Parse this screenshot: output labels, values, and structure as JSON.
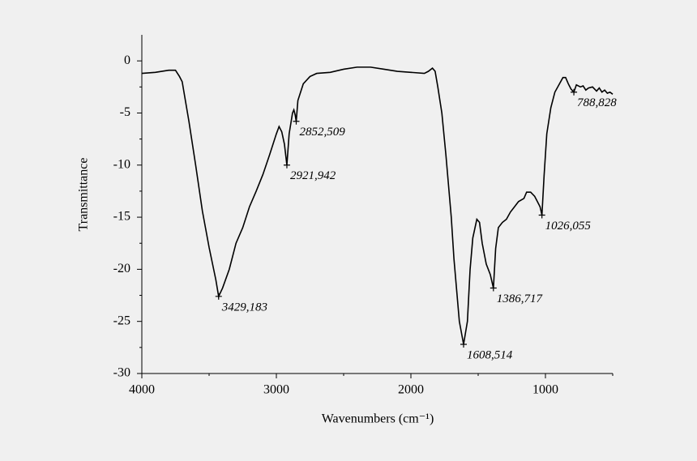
{
  "chart_data": {
    "type": "line",
    "x_label": "Wavenumbers (cm⁻¹)",
    "y_label": "Transmittance",
    "color": "#000000",
    "xlim": [
      4000,
      500
    ],
    "ylim": [
      -30,
      2.5
    ],
    "xticks": [
      4000,
      3000,
      2000,
      1000
    ],
    "x_minor_ticks": [
      3500,
      2500,
      1500,
      500
    ],
    "yticks": [
      0,
      -5,
      -10,
      -15,
      -20,
      -25,
      -30
    ],
    "y_minor_ticks": [
      -2.5,
      -7.5,
      -12.5,
      -17.5,
      -22.5,
      -27.5
    ],
    "x": [
      4000,
      3900,
      3800,
      3750,
      3720,
      3700,
      3650,
      3600,
      3550,
      3500,
      3450,
      3429.183,
      3400,
      3350,
      3300,
      3250,
      3200,
      3150,
      3100,
      3050,
      3000,
      2980,
      2960,
      2940,
      2921.942,
      2905,
      2880,
      2870,
      2860,
      2852.509,
      2840,
      2800,
      2750,
      2700,
      2600,
      2500,
      2400,
      2300,
      2200,
      2100,
      2000,
      1900,
      1870,
      1840,
      1820,
      1800,
      1770,
      1740,
      1700,
      1680,
      1660,
      1640,
      1608.514,
      1580,
      1560,
      1540,
      1510,
      1490,
      1470,
      1440,
      1410,
      1386.717,
      1370,
      1350,
      1320,
      1290,
      1260,
      1230,
      1200,
      1160,
      1140,
      1110,
      1080,
      1060,
      1040,
      1026.055,
      1010,
      990,
      960,
      930,
      900,
      870,
      850,
      830,
      810,
      788.828,
      770,
      740,
      720,
      700,
      680,
      650,
      620,
      600,
      580,
      560,
      540,
      520,
      500
    ],
    "values": [
      -1.2,
      -1.1,
      -0.9,
      -0.9,
      -1.5,
      -2,
      -5.8,
      -10,
      -14.4,
      -17.9,
      -21,
      -22.6,
      -21.8,
      -20,
      -17.5,
      -16,
      -14,
      -12.5,
      -10.9,
      -9,
      -7,
      -6.3,
      -6.8,
      -8,
      -10,
      -7,
      -5,
      -4.7,
      -5.2,
      -5.8,
      -3.8,
      -2.2,
      -1.5,
      -1.2,
      -1.1,
      -0.8,
      -0.6,
      -0.6,
      -0.8,
      -1.0,
      -1.1,
      -1.2,
      -1.0,
      -0.7,
      -1.0,
      -2.5,
      -5,
      -9,
      -15,
      -19,
      -22,
      -25,
      -27.2,
      -25,
      -20,
      -17,
      -15.2,
      -15.5,
      -17.5,
      -19.5,
      -20.5,
      -21.8,
      -18,
      -16,
      -15.5,
      -15.2,
      -14.5,
      -14,
      -13.5,
      -13.2,
      -12.6,
      -12.6,
      -13,
      -13.5,
      -14,
      -14.8,
      -11,
      -7,
      -4.5,
      -3,
      -2.3,
      -1.6,
      -1.6,
      -2.2,
      -2.7,
      -3.0,
      -2.3,
      -2.5,
      -2.4,
      -2.8,
      -2.6,
      -2.5,
      -2.9,
      -2.6,
      -3,
      -2.8,
      -3.1,
      -3.0,
      -3.2
    ],
    "annotations": [
      {
        "label": "3429,183",
        "x": 3429.183,
        "y": -22.6
      },
      {
        "label": "2921,942",
        "x": 2921.942,
        "y": -10
      },
      {
        "label": "2852,509",
        "x": 2852.509,
        "y": -5.8
      },
      {
        "label": "1608,514",
        "x": 1608.514,
        "y": -27.2
      },
      {
        "label": "1386,717",
        "x": 1386.717,
        "y": -21.8
      },
      {
        "label": "1026,055",
        "x": 1026.055,
        "y": -14.8
      },
      {
        "label": "788,828",
        "x": 788.828,
        "y": -3.0
      }
    ]
  }
}
